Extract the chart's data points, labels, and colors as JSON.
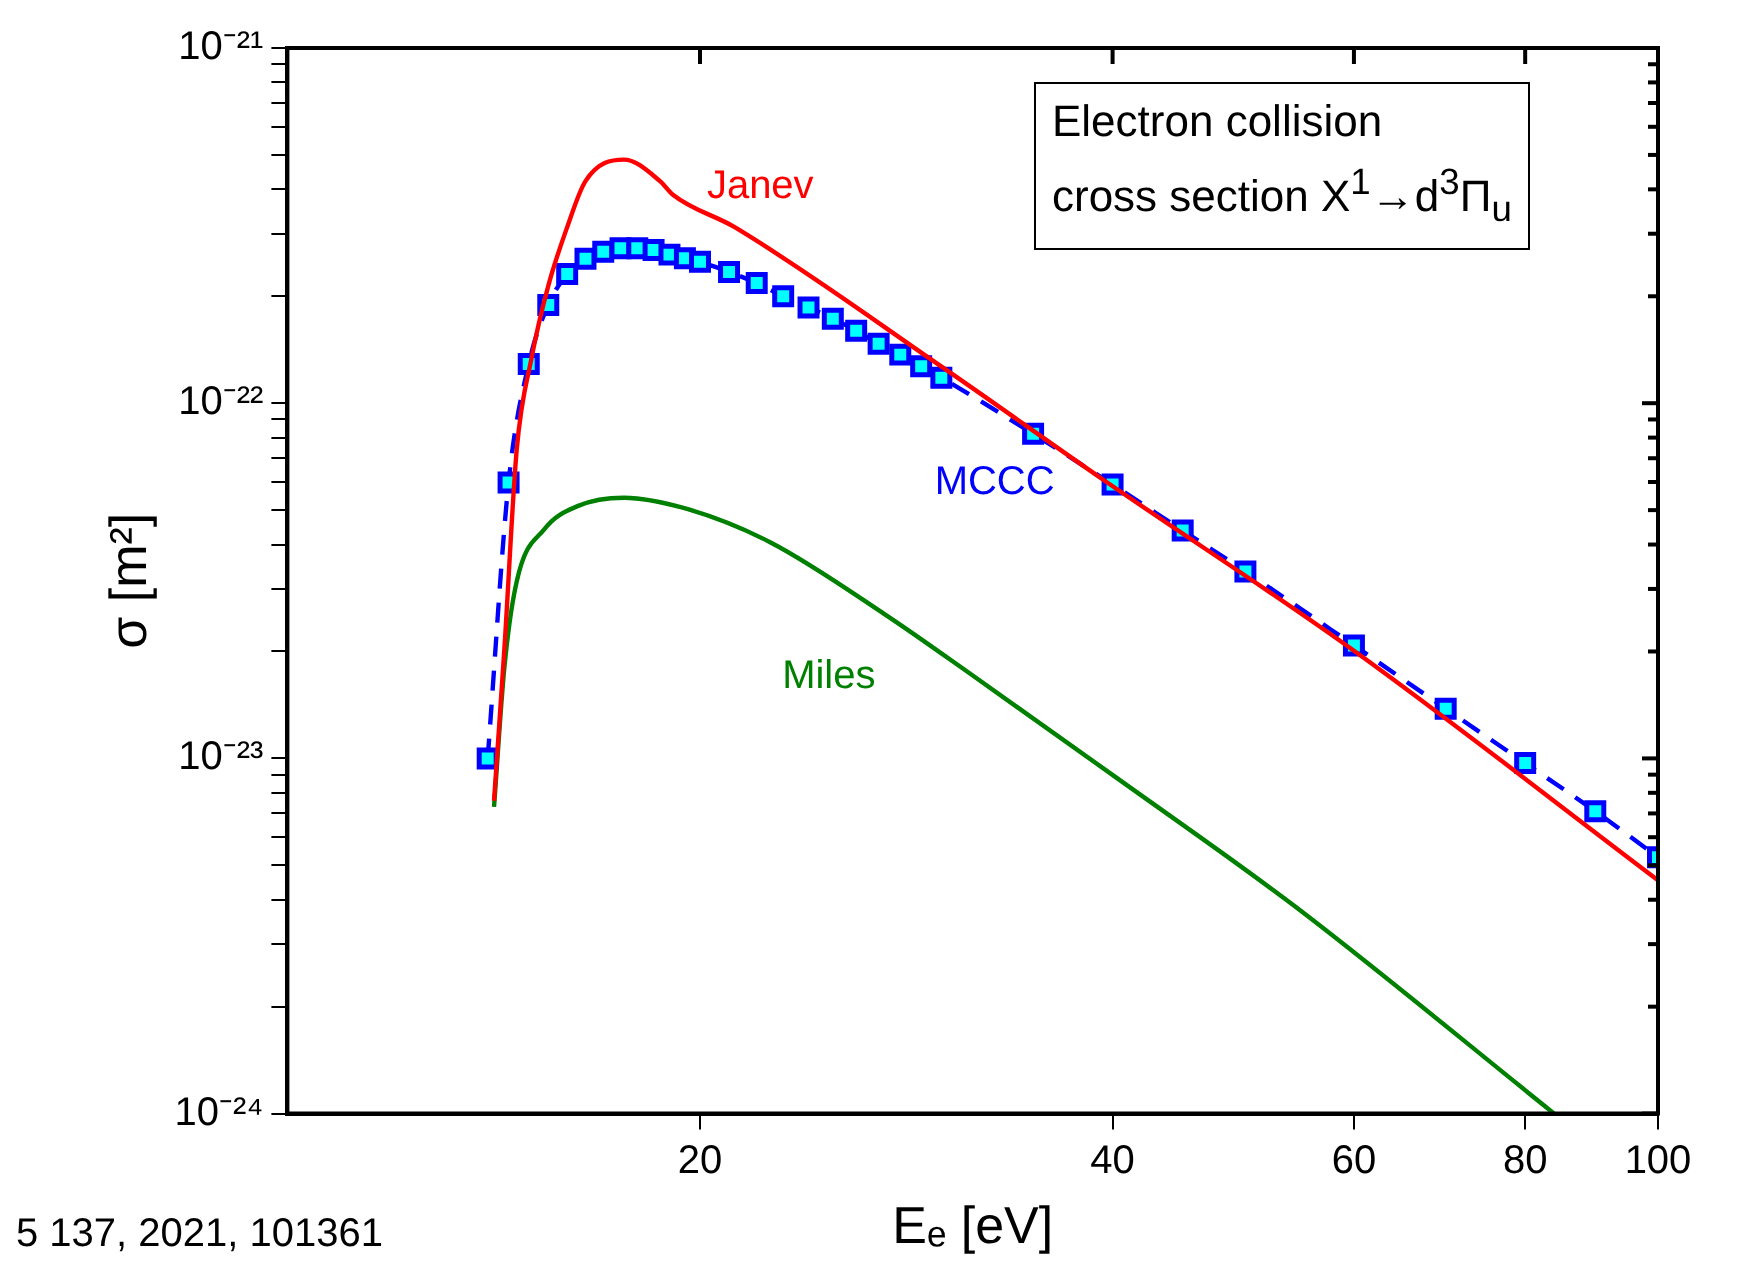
{
  "chart_data": {
    "type": "line",
    "xlabel": "Eₑ [eV]",
    "ylabel": "σ [m²]",
    "log": "xy",
    "grid": false,
    "legend": false,
    "xlim": [
      10,
      100
    ],
    "xticks": [
      20,
      40,
      60,
      80,
      100
    ],
    "ylim": [
      1e-24,
      1e-21
    ],
    "yticks": [
      {
        "value": 1e-24,
        "label": "10⁻²⁴"
      },
      {
        "value": 2e-24,
        "label": null
      },
      {
        "value": 3e-24,
        "label": null
      },
      {
        "value": 4e-24,
        "label": null
      },
      {
        "value": 5e-24,
        "label": null
      },
      {
        "value": 6e-24,
        "label": null
      },
      {
        "value": 7e-24,
        "label": null
      },
      {
        "value": 8e-24,
        "label": null
      },
      {
        "value": 9e-24,
        "label": null
      },
      {
        "value": 1e-23,
        "label": "10⁻²³"
      },
      {
        "value": 2e-23,
        "label": null
      },
      {
        "value": 3e-23,
        "label": null
      },
      {
        "value": 4e-23,
        "label": null
      },
      {
        "value": 5e-23,
        "label": null
      },
      {
        "value": 6e-23,
        "label": null
      },
      {
        "value": 7e-23,
        "label": null
      },
      {
        "value": 8e-23,
        "label": null
      },
      {
        "value": 9e-23,
        "label": null
      },
      {
        "value": 1e-22,
        "label": "10⁻²²"
      },
      {
        "value": 2e-22,
        "label": null
      },
      {
        "value": 3e-22,
        "label": null
      },
      {
        "value": 4e-22,
        "label": null
      },
      {
        "value": 5e-22,
        "label": null
      },
      {
        "value": 6e-22,
        "label": null
      },
      {
        "value": 7e-22,
        "label": null
      },
      {
        "value": 8e-22,
        "label": null
      },
      {
        "value": 9e-22,
        "label": null
      },
      {
        "value": 1e-21,
        "label": "10⁻²¹"
      }
    ],
    "series": [
      {
        "name": "Janev",
        "color": "#ff0000",
        "marker": "none",
        "line_style": "solid",
        "x": [
          14.15,
          14.4,
          14.7,
          15.07,
          15.5,
          16,
          16.5,
          17.6,
          18.7,
          19.1,
          21.2,
          29.9,
          39.4,
          60,
          100
        ],
        "values": [
          7.6e-24,
          2.05e-23,
          7.4e-23,
          1.34e-22,
          2.14e-22,
          3.13e-22,
          4.22e-22,
          4.85e-22,
          4.22e-22,
          3.87e-22,
          3.13e-22,
          1.28e-22,
          6.08e-23,
          2.01e-23,
          4.54e-24
        ]
      },
      {
        "name": "MCCC",
        "color": "#0000ff",
        "marker": "square",
        "line_style": "dashed",
        "x": [
          14,
          14.5,
          15,
          15.5,
          16,
          16.5,
          17,
          17.5,
          18,
          18.5,
          19,
          19.5,
          20,
          21,
          22,
          23,
          24,
          25,
          26,
          27,
          28,
          29,
          30,
          35,
          40,
          45,
          50,
          60,
          70,
          80,
          90,
          100
        ],
        "values": [
          1e-23,
          5.98e-23,
          1.29e-22,
          1.89e-22,
          2.31e-22,
          2.55e-22,
          2.67e-22,
          2.73e-22,
          2.73e-22,
          2.7e-22,
          2.62e-22,
          2.56e-22,
          2.5e-22,
          2.34e-22,
          2.18e-22,
          2e-22,
          1.86e-22,
          1.73e-22,
          1.6e-22,
          1.47e-22,
          1.37e-22,
          1.27e-22,
          1.18e-22,
          8.2e-23,
          5.9e-23,
          4.38e-23,
          3.36e-23,
          2.08e-23,
          1.38e-23,
          9.7e-24,
          7.1e-24,
          5.27e-24
        ]
      },
      {
        "name": "Miles",
        "color": "#008000",
        "marker": "none",
        "line_style": "solid",
        "x": [
          14.15,
          14.4,
          14.7,
          15.4,
          16.3,
          17.6,
          19.6,
          22.5,
          27.3,
          31.7,
          40.3,
          54.3,
          84
        ],
        "values": [
          7.3e-24,
          1.81e-23,
          3.15e-23,
          4.42e-23,
          5.14e-23,
          5.42e-23,
          5.03e-23,
          4.06e-23,
          2.54e-23,
          1.7e-23,
          8.8e-24,
          3.84e-24,
          1e-24
        ]
      }
    ],
    "annotations": [
      "Electron collision\ncross section X$^{1}$→d$^{3}$Π$_{u}$",
      "5 137, 2021, 101361"
    ]
  }
}
